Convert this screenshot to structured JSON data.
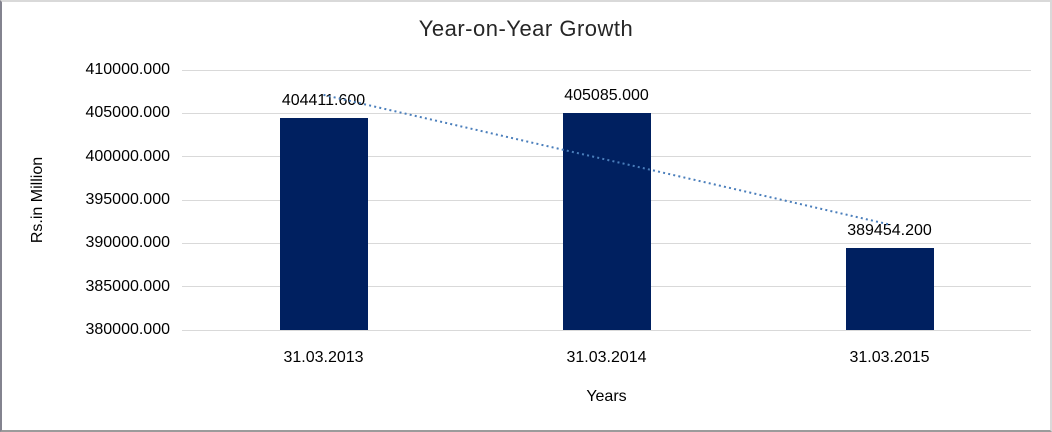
{
  "chart_data": {
    "type": "bar",
    "title": "Year-on-Year Growth",
    "xlabel": "Years",
    "ylabel": "Rs.in Million",
    "categories": [
      "31.03.2013",
      "31.03.2014",
      "31.03.2015"
    ],
    "values": [
      404411.6,
      405085.0,
      389454.2
    ],
    "data_labels": [
      "404411.600",
      "405085.000",
      "389454.200"
    ],
    "y_axis": {
      "min": 380000,
      "max": 410000,
      "step": 5000,
      "tick_labels": [
        "380000.000",
        "385000.000",
        "390000.000",
        "395000.000",
        "400000.000",
        "405000.000",
        "410000.000"
      ]
    },
    "grid": true,
    "legend": "none",
    "bar_color": "#002060",
    "gridline_color": "#d9d9d9",
    "text_color": "#000000",
    "trendline": {
      "type": "linear",
      "style": "dotted",
      "color": "#4A7EBB",
      "endpoint_values": [
        407129.0,
        392171.5
      ]
    }
  }
}
